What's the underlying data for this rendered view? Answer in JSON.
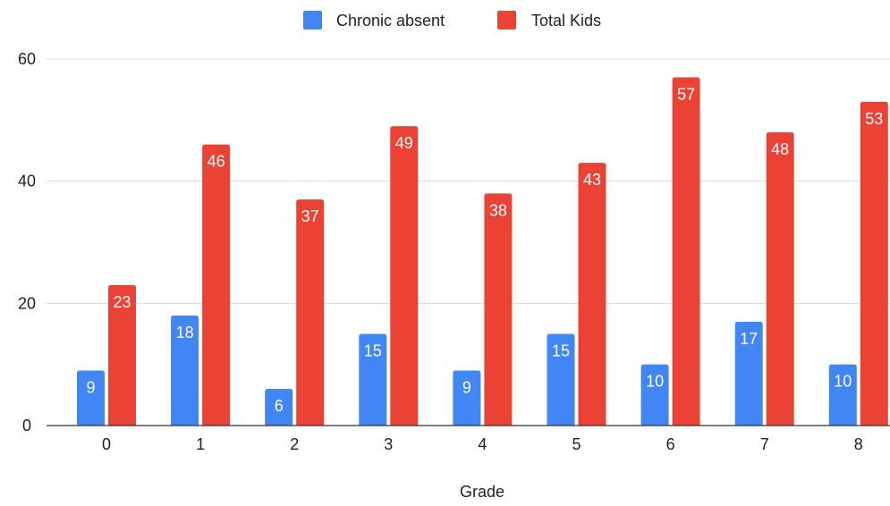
{
  "chart_data": {
    "type": "bar",
    "categories": [
      "0",
      "1",
      "2",
      "3",
      "4",
      "5",
      "6",
      "7",
      "8"
    ],
    "series": [
      {
        "name": "Chronic absent",
        "color": "#4285F4",
        "values": [
          9,
          18,
          6,
          15,
          9,
          15,
          10,
          17,
          10
        ]
      },
      {
        "name": "Total Kids",
        "color": "#EA4335",
        "values": [
          23,
          46,
          37,
          49,
          38,
          43,
          57,
          48,
          53
        ]
      }
    ],
    "title": "",
    "xlabel": "Grade",
    "ylabel": "",
    "ylim": [
      0,
      60
    ],
    "yticks": [
      0,
      20,
      40,
      60
    ],
    "grid": true,
    "legend_position": "top",
    "data_labels": true
  }
}
